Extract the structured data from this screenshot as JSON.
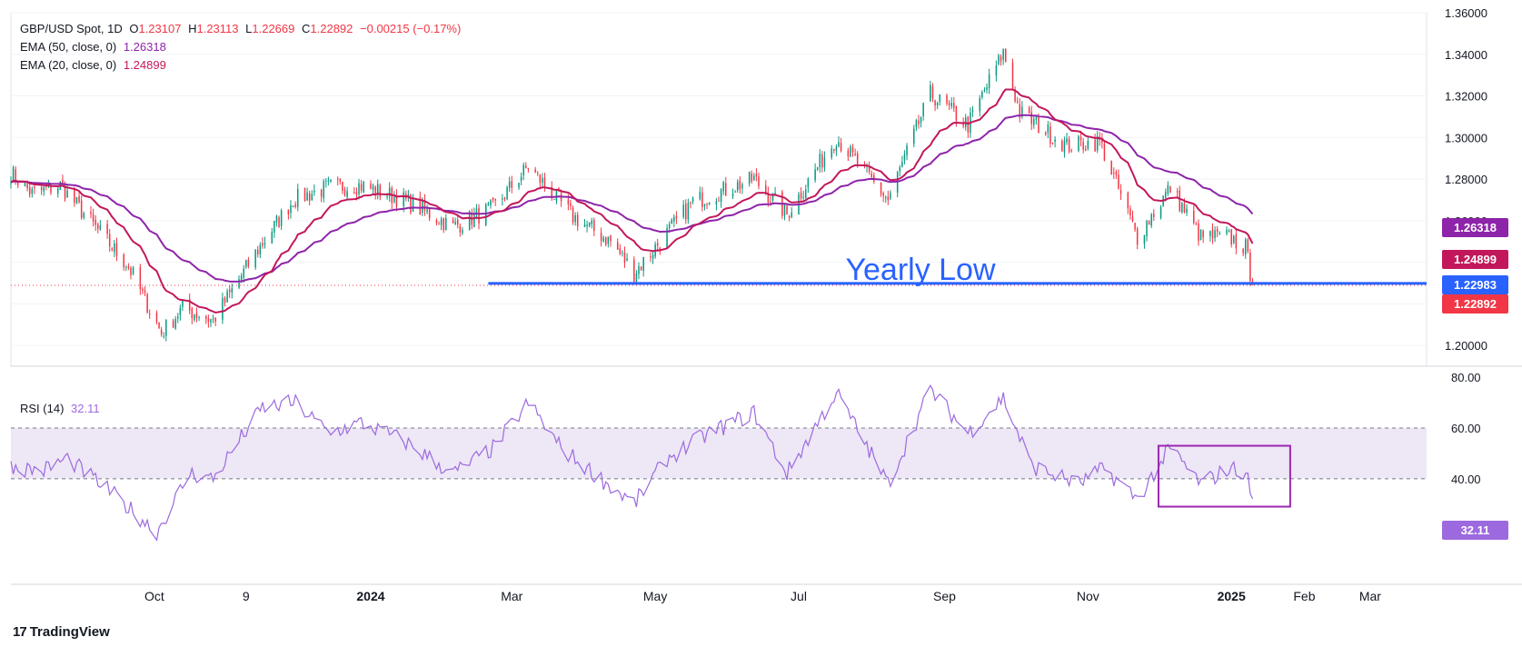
{
  "legend": {
    "symbol": "GBP/USD Spot, 1D",
    "open_label": "O",
    "open": "1.23107",
    "high_label": "H",
    "high": "1.23113",
    "low_label": "L",
    "low": "1.22669",
    "close_label": "C",
    "close": "1.22892",
    "change": "−0.00215 (−0.17%)",
    "ema50_label": "EMA (50, close, 0)",
    "ema50_value": "1.26318",
    "ema20_label": "EMA (20, close, 0)",
    "ema20_value": "1.24899",
    "rsi_label": "RSI (14)",
    "rsi_value": "32.11"
  },
  "annotation": {
    "text": "Yearly Low"
  },
  "badges": {
    "ema50": "1.26318",
    "ema20": "1.24899",
    "yearly_low": "1.22983",
    "last_price": "1.22892",
    "rsi": "32.11"
  },
  "colors": {
    "up": "#089981",
    "down": "#f23645",
    "ema50": "#8e24aa",
    "ema20": "#c2185b",
    "yearly_low_line": "#2962ff",
    "rsi": "#9c6ade",
    "rsi_band": "#ede7f6",
    "rsi_box": "#9c27b0"
  },
  "branding": {
    "name": "TradingView"
  },
  "chart_data": [
    {
      "type": "candlestick",
      "title": "GBP/USD Spot, 1D",
      "x_ticks": [
        "Oct",
        "9",
        "2024",
        "Mar",
        "May",
        "Jul",
        "Sep",
        "Nov",
        "2025",
        "Feb",
        "Mar"
      ],
      "y_ticks": [
        "1.20000",
        "1.22000",
        "1.24000",
        "1.26000",
        "1.28000",
        "1.30000",
        "1.32000",
        "1.34000",
        "1.36000"
      ],
      "ylim": [
        1.19,
        1.36
      ],
      "x_range": [
        "2023-08-01",
        "2025-03-25"
      ],
      "last_date": "2025-01-10",
      "key_points": [
        [
          "2023-08-01",
          1.283
        ],
        [
          "2023-08-10",
          1.273
        ],
        [
          "2023-08-22",
          1.277
        ],
        [
          "2023-09-05",
          1.258
        ],
        [
          "2023-09-20",
          1.238
        ],
        [
          "2023-10-04",
          1.206
        ],
        [
          "2023-10-13",
          1.218
        ],
        [
          "2023-10-26",
          1.212
        ],
        [
          "2023-11-14",
          1.246
        ],
        [
          "2023-11-29",
          1.27
        ],
        [
          "2023-12-14",
          1.276
        ],
        [
          "2023-12-28",
          1.277
        ],
        [
          "2024-01-15",
          1.27
        ],
        [
          "2024-02-05",
          1.257
        ],
        [
          "2024-02-22",
          1.266
        ],
        [
          "2024-03-08",
          1.286
        ],
        [
          "2024-03-27",
          1.262
        ],
        [
          "2024-04-12",
          1.25
        ],
        [
          "2024-04-22",
          1.235
        ],
        [
          "2024-05-06",
          1.254
        ],
        [
          "2024-05-17",
          1.269
        ],
        [
          "2024-06-12",
          1.28
        ],
        [
          "2024-06-26",
          1.263
        ],
        [
          "2024-07-17",
          1.3
        ],
        [
          "2024-08-08",
          1.27
        ],
        [
          "2024-08-26",
          1.321
        ],
        [
          "2024-09-11",
          1.306
        ],
        [
          "2024-09-26",
          1.341
        ],
        [
          "2024-10-03",
          1.312
        ],
        [
          "2024-10-23",
          1.296
        ],
        [
          "2024-11-06",
          1.298
        ],
        [
          "2024-11-22",
          1.252
        ],
        [
          "2024-12-06",
          1.276
        ],
        [
          "2024-12-19",
          1.252
        ],
        [
          "2024-12-31",
          1.252
        ],
        [
          "2025-01-07",
          1.247
        ],
        [
          "2025-01-10",
          1.229
        ]
      ],
      "series": [
        {
          "name": "EMA (50, close, 0)",
          "last": 1.26318
        },
        {
          "name": "EMA (20, close, 0)",
          "last": 1.24899
        }
      ],
      "horizontal_line": {
        "label": "Yearly Low",
        "value": 1.22983,
        "start": "2024-02-20"
      },
      "last_price": 1.22892
    },
    {
      "type": "line",
      "title": "RSI (14)",
      "y_ticks": [
        "20.00",
        "40.00",
        "60.00",
        "80.00"
      ],
      "ylim": [
        12,
        84
      ],
      "band": [
        40,
        60
      ],
      "key_points": [
        [
          "2023-08-01",
          45
        ],
        [
          "2023-08-14",
          43
        ],
        [
          "2023-08-25",
          48
        ],
        [
          "2023-09-12",
          35
        ],
        [
          "2023-10-02",
          19
        ],
        [
          "2023-10-16",
          42
        ],
        [
          "2023-10-26",
          40
        ],
        [
          "2023-11-06",
          55
        ],
        [
          "2023-11-16",
          68
        ],
        [
          "2023-11-30",
          70
        ],
        [
          "2023-12-14",
          58
        ],
        [
          "2023-12-28",
          62
        ],
        [
          "2024-01-15",
          55
        ],
        [
          "2024-02-05",
          42
        ],
        [
          "2024-02-22",
          52
        ],
        [
          "2024-03-08",
          70
        ],
        [
          "2024-03-22",
          52
        ],
        [
          "2024-04-05",
          42
        ],
        [
          "2024-04-22",
          30
        ],
        [
          "2024-05-06",
          48
        ],
        [
          "2024-05-24",
          58
        ],
        [
          "2024-06-12",
          66
        ],
        [
          "2024-06-26",
          42
        ],
        [
          "2024-07-17",
          74
        ],
        [
          "2024-08-08",
          38
        ],
        [
          "2024-08-26",
          75
        ],
        [
          "2024-09-11",
          58
        ],
        [
          "2024-09-26",
          72
        ],
        [
          "2024-10-08",
          45
        ],
        [
          "2024-10-28",
          38
        ],
        [
          "2024-11-08",
          44
        ],
        [
          "2024-11-22",
          32
        ],
        [
          "2024-12-06",
          52
        ],
        [
          "2024-12-19",
          38
        ],
        [
          "2024-12-31",
          44
        ],
        [
          "2025-01-07",
          43
        ],
        [
          "2025-01-10",
          32.11
        ]
      ],
      "highlight_box": {
        "x": [
          "2024-12-01",
          "2025-01-26"
        ],
        "y": [
          29,
          53
        ]
      }
    }
  ]
}
